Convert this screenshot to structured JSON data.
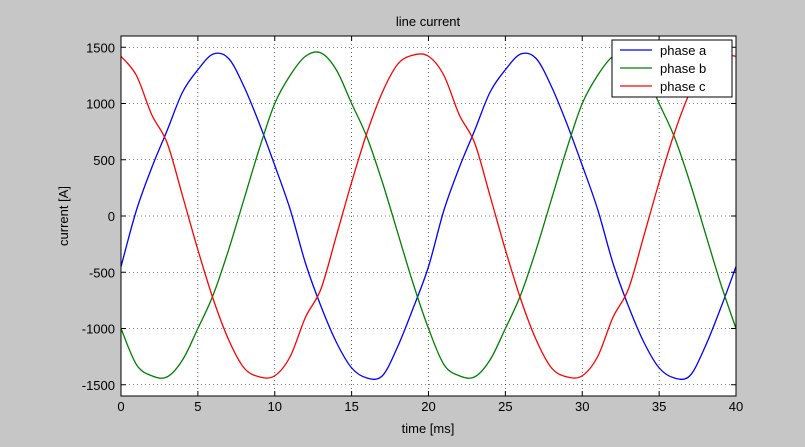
{
  "chart_data": {
    "type": "line",
    "title": "line current",
    "xlabel": "time [ms]",
    "ylabel": "current [A]",
    "xlim": [
      0,
      40
    ],
    "ylim": [
      -1600,
      1600
    ],
    "xticks": [
      0,
      5,
      10,
      15,
      20,
      25,
      30,
      35,
      40
    ],
    "yticks": [
      -1500,
      -1000,
      -500,
      0,
      500,
      1000,
      1500
    ],
    "xtick_labels": [
      "0",
      "5",
      "10",
      "15",
      "20",
      "25",
      "30",
      "35",
      "40"
    ],
    "ytick_labels": [
      "-1500",
      "-1000",
      "-500",
      "0",
      "500",
      "1000",
      "1500"
    ],
    "grid": true,
    "legend_position": "top-right",
    "x": [
      0,
      1,
      2,
      3,
      4,
      5,
      6,
      7,
      8,
      9,
      10,
      11,
      12,
      13,
      14,
      15,
      16,
      17,
      18,
      19,
      20,
      21,
      22,
      23,
      24,
      25,
      26,
      27,
      28,
      29,
      30,
      31,
      32,
      33,
      34,
      35,
      36,
      37,
      38,
      39,
      40
    ],
    "series": [
      {
        "name": "phase a",
        "color": "#0000ff",
        "values": [
          -450,
          50,
          430,
          760,
          1100,
          1300,
          1440,
          1400,
          1150,
          820,
          450,
          60,
          -420,
          -800,
          -1120,
          -1350,
          -1440,
          -1420,
          -1160,
          -820,
          -450,
          50,
          430,
          760,
          1100,
          1300,
          1440,
          1400,
          1150,
          820,
          450,
          60,
          -420,
          -800,
          -1120,
          -1350,
          -1440,
          -1420,
          -1160,
          -820,
          -450
        ]
      },
      {
        "name": "phase b",
        "color": "#008000",
        "values": [
          -1000,
          -1320,
          -1420,
          -1430,
          -1280,
          -1000,
          -700,
          -300,
          150,
          600,
          1000,
          1250,
          1420,
          1450,
          1300,
          1000,
          700,
          300,
          -150,
          -600,
          -1000,
          -1320,
          -1420,
          -1430,
          -1280,
          -1000,
          -700,
          -300,
          150,
          600,
          1000,
          1250,
          1420,
          1450,
          1300,
          1000,
          700,
          300,
          -150,
          -600,
          -1000
        ]
      },
      {
        "name": "phase c",
        "color": "#ff0000",
        "values": [
          1420,
          1250,
          900,
          650,
          180,
          -300,
          -740,
          -1100,
          -1350,
          -1430,
          -1420,
          -1250,
          -900,
          -650,
          -180,
          300,
          740,
          1100,
          1350,
          1430,
          1420,
          1250,
          900,
          650,
          180,
          -300,
          -740,
          -1100,
          -1350,
          -1430,
          -1420,
          -1250,
          -900,
          -650,
          -180,
          300,
          740,
          1100,
          1350,
          1430,
          1420
        ]
      }
    ]
  }
}
